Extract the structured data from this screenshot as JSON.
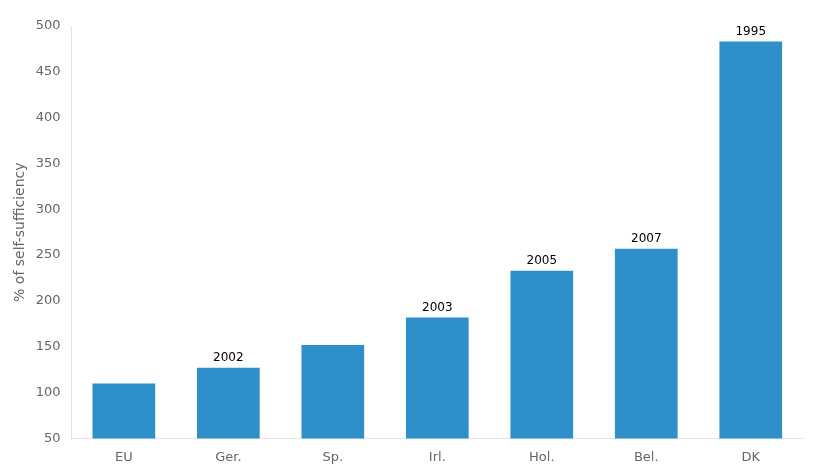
{
  "chart_data": {
    "type": "bar",
    "categories": [
      "EU",
      "Ger.",
      "Sp.",
      "Irl.",
      "Hol.",
      "Bel.",
      "DK"
    ],
    "values": [
      110,
      127,
      152,
      182,
      233,
      257,
      483
    ],
    "color": "#2e8fca",
    "ylabel": "% of self-sufficiency",
    "ylim": [
      50,
      500
    ],
    "yticks": [
      50,
      100,
      150,
      200,
      250,
      300,
      350,
      400,
      450,
      500
    ],
    "grid": false,
    "annotations": [
      {
        "category": "Ger.",
        "text": "2002"
      },
      {
        "category": "Irl.",
        "text": "2003"
      },
      {
        "category": "Hol.",
        "text": "2005"
      },
      {
        "category": "Bel.",
        "text": "2007"
      },
      {
        "category": "DK",
        "text": "1995"
      }
    ]
  }
}
